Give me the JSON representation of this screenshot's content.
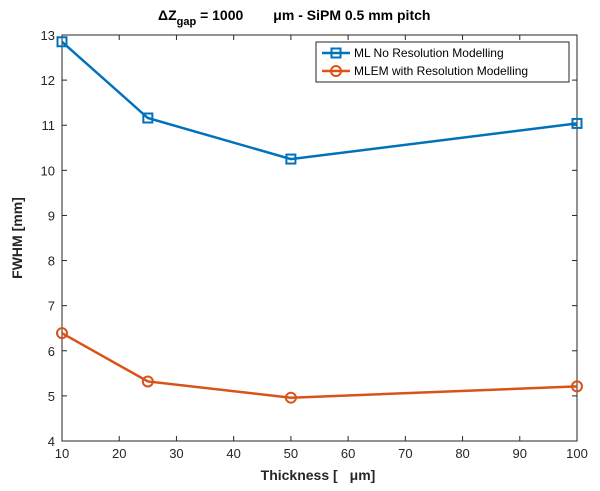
{
  "chart_data": {
    "type": "line",
    "title": {
      "delta": "ΔZ",
      "sub": "gap",
      "value": " = 1000",
      "unit": "μm - SiPM 0.5 mm pitch"
    },
    "xlabel": {
      "prefix": "Thickness [",
      "unit": "μm]"
    },
    "ylabel": "FWHM [mm]",
    "xlim": [
      10,
      100
    ],
    "ylim": [
      4,
      13
    ],
    "xticks": [
      "10",
      "20",
      "30",
      "40",
      "50",
      "60",
      "70",
      "80",
      "90",
      "100"
    ],
    "yticks": [
      "4",
      "5",
      "6",
      "7",
      "8",
      "9",
      "10",
      "11",
      "12",
      "13"
    ],
    "grid": false,
    "legend_position": "top-right",
    "x": [
      10,
      25,
      50,
      100
    ],
    "series": [
      {
        "name": "ML No Resolution Modelling",
        "marker": "square",
        "color": "#0072BD",
        "values": [
          12.85,
          11.16,
          10.25,
          11.04
        ]
      },
      {
        "name": "MLEM with Resolution Modelling",
        "marker": "circle",
        "color": "#D95319",
        "values": [
          6.39,
          5.32,
          4.96,
          5.21
        ]
      }
    ]
  }
}
